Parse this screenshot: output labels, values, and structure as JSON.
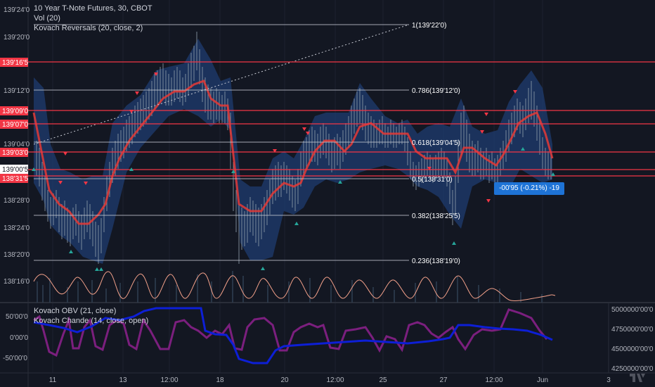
{
  "header": {
    "title": "10 Year T-Note Futures, 30, CBOT",
    "indicators": [
      "Vol (20)",
      "Kovach Reversals (20, close, 2)"
    ]
  },
  "lower_pane": {
    "indicators": [
      "Kovach OBV (21, close)",
      "Kovach Chande (14, close, open)"
    ]
  },
  "price_axis": {
    "ticks": [
      "139'24'0",
      "139'20'0",
      "139'12'0",
      "139'04'0",
      "138'28'0",
      "138'24'0",
      "138'20'0",
      "138'16'0"
    ]
  },
  "price_labels": [
    {
      "text": "139'16'5",
      "color": "#f23645"
    },
    {
      "text": "139'09'0",
      "color": "#f23645"
    },
    {
      "text": "139'07'0",
      "color": "#f23645"
    },
    {
      "text": "139'03'0",
      "color": "#f23645"
    },
    {
      "text": "139'00'5",
      "color": "#f23645"
    },
    {
      "text": "138'31'5",
      "color": "#f23645"
    }
  ],
  "fib_labels": [
    "1(139'22'0)",
    "0.786(139'12'0)",
    "0.618(139'04'5)",
    "0.5(138'31'0)",
    "0.382(138'25'5)",
    "0.236(138'19'0)"
  ],
  "change_badge": "-00'95 (-0.21%) -19",
  "lower_axis_left": [
    "50'00'0",
    "0'00'0",
    "-50'00'0"
  ],
  "lower_axis_right": [
    "5000000'00'0",
    "4750000'00'0",
    "4500000'00'0",
    "4250000'00'0"
  ],
  "time_axis": [
    "11",
    "13",
    "12:00",
    "18",
    "20",
    "12:00",
    "25",
    "27",
    "12:00",
    "Jun",
    "3"
  ],
  "colors": {
    "background": "#131722",
    "red_level": "#f23645",
    "band": "#1f3f75",
    "ma": "#e53935",
    "obv": "#0d1fd6",
    "chande": "#7b1f7e",
    "volume_osc": "#f3a18a",
    "up_marker": "#26a69a",
    "down_marker": "#f23645",
    "accent_badge": "#1e73d6"
  },
  "brand_icon": "tradingview-logo-icon"
}
